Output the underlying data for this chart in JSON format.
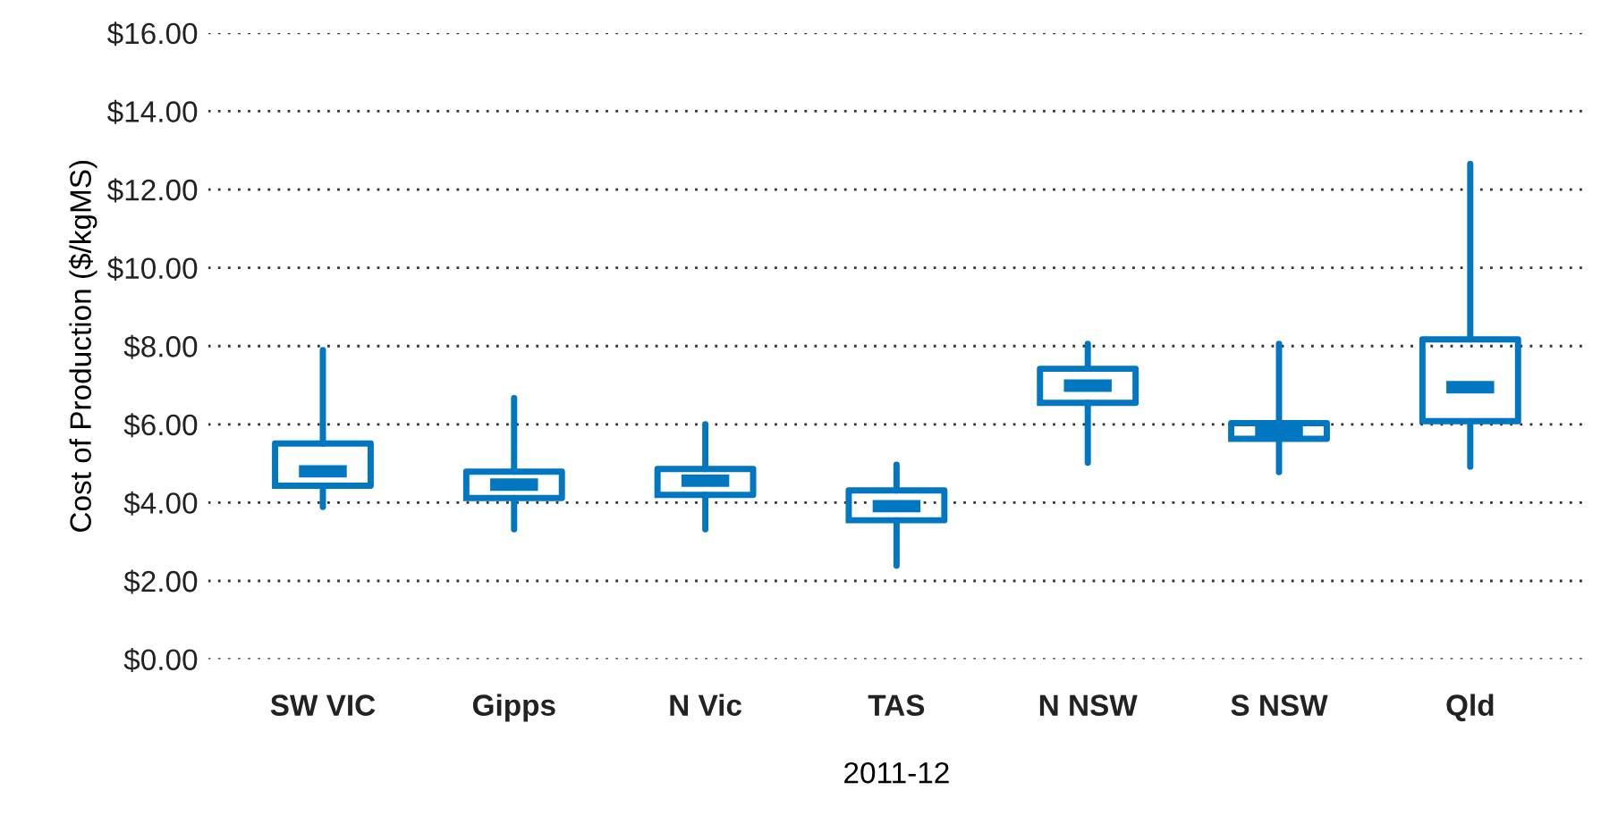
{
  "chart_data": {
    "type": "box",
    "xlabel": "2011-12",
    "ylabel": "Cost of Production ($/kgMS)",
    "categories": [
      "SW VIC",
      "Gipps",
      "N Vic",
      "TAS",
      "N NSW",
      "S NSW",
      "Qld"
    ],
    "boxes": [
      {
        "low": 3.89,
        "q1": 4.43,
        "median": 4.8,
        "q3": 5.51,
        "high": 7.9
      },
      {
        "low": 3.32,
        "q1": 4.12,
        "median": 4.46,
        "q3": 4.79,
        "high": 6.67
      },
      {
        "low": 3.32,
        "q1": 4.2,
        "median": 4.56,
        "q3": 4.86,
        "high": 6.0
      },
      {
        "low": 2.39,
        "q1": 3.55,
        "median": 3.91,
        "q3": 4.31,
        "high": 4.97
      },
      {
        "low": 5.02,
        "q1": 6.55,
        "median": 6.99,
        "q3": 7.42,
        "high": 8.06
      },
      {
        "low": 4.78,
        "q1": 5.63,
        "median": 5.84,
        "q3": 6.03,
        "high": 8.06
      },
      {
        "low": 4.92,
        "q1": 6.08,
        "median": 6.95,
        "q3": 8.17,
        "high": 12.65
      }
    ],
    "color": "#0077c0",
    "ylim": [
      0,
      16
    ],
    "yticks": [
      {
        "value": 0,
        "label": "$0.00"
      },
      {
        "value": 2,
        "label": "$2.00"
      },
      {
        "value": 4,
        "label": "$4.00"
      },
      {
        "value": 6,
        "label": "$6.00"
      },
      {
        "value": 8,
        "label": "$8.00"
      },
      {
        "value": 10,
        "label": "$10.00"
      },
      {
        "value": 12,
        "label": "$12.00"
      },
      {
        "value": 14,
        "label": "$14.00"
      },
      {
        "value": 16,
        "label": "$16.00"
      }
    ],
    "grid": "y",
    "legend": false
  }
}
